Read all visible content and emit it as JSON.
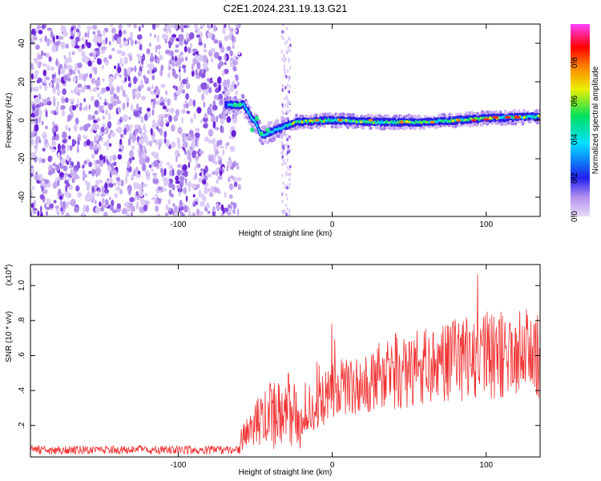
{
  "title": "C2E1.2024.231.19.13.G21",
  "chart_data": [
    {
      "type": "heatmap",
      "xlabel": "Height of straight line (km)",
      "ylabel": "Frequency (Hz)",
      "xlim": [
        -196,
        135
      ],
      "ylim": [
        -50,
        50
      ],
      "xticks": [
        -100,
        0,
        100
      ],
      "yticks": [
        -40,
        -20,
        0,
        20,
        40
      ],
      "noise_region_x": [
        -196,
        -60
      ],
      "signal_track": [
        [
          -68,
          8
        ],
        [
          -58,
          8
        ],
        [
          -55,
          4
        ],
        [
          -50,
          -2
        ],
        [
          -46,
          -8
        ],
        [
          -40,
          -6
        ],
        [
          -34,
          -4
        ],
        [
          -25,
          -1
        ],
        [
          0,
          0
        ],
        [
          30,
          -1
        ],
        [
          60,
          -1
        ],
        [
          80,
          0
        ],
        [
          100,
          1
        ],
        [
          135,
          2
        ]
      ],
      "colorbar": {
        "label": "Normalized spectral amplitude",
        "range": [
          0,
          1
        ],
        "ticks": [
          "0.0",
          "0.2",
          "0.4",
          "0.6",
          "0.8"
        ],
        "colors": [
          "#e8dcf8",
          "#7b2be0",
          "#2020f0",
          "#00e0ff",
          "#00e060",
          "#e8f000",
          "#ff8000",
          "#ff0000",
          "#ff40ff"
        ]
      }
    },
    {
      "type": "line",
      "xlabel": "Height of straight line (km)",
      "ylabel": "SNR (10 * v/v)",
      "y_multiplier": "(x10",
      "y_multiplier_exp": "4",
      "y_multiplier_close": ")",
      "xlim": [
        -196,
        135
      ],
      "ylim": [
        0.02,
        1.12
      ],
      "xticks": [
        -100,
        0,
        100
      ],
      "yticks": [
        0.2,
        0.4,
        0.6,
        0.8,
        1.0
      ],
      "color": "#f03030",
      "envelope": [
        [
          -196,
          0.07
        ],
        [
          -120,
          0.07
        ],
        [
          -80,
          0.09
        ],
        [
          -60,
          0.09
        ],
        [
          -45,
          0.3
        ],
        [
          -30,
          0.45
        ],
        [
          -20,
          0.2
        ],
        [
          -10,
          0.35
        ],
        [
          0,
          0.45
        ],
        [
          20,
          0.5
        ],
        [
          40,
          0.58
        ],
        [
          60,
          0.62
        ],
        [
          80,
          0.65
        ],
        [
          100,
          0.68
        ],
        [
          120,
          0.72
        ],
        [
          135,
          0.7
        ]
      ]
    }
  ]
}
